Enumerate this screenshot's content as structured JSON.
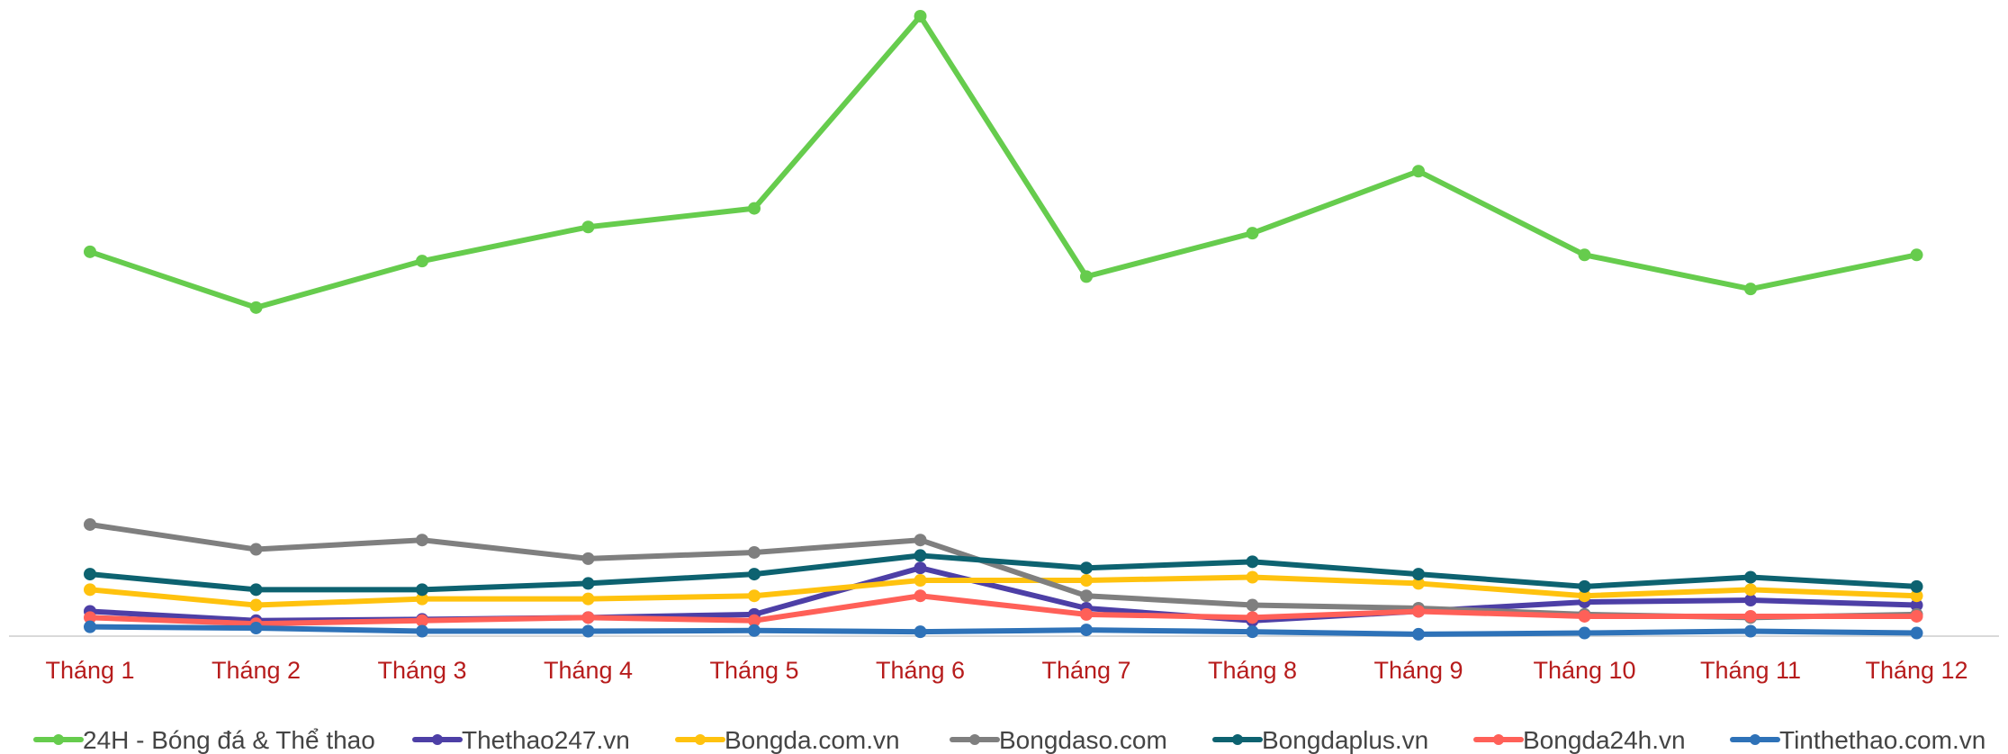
{
  "chart_data": {
    "type": "line",
    "title": "",
    "xlabel": "",
    "ylabel": "",
    "categories": [
      "Tháng 1",
      "Tháng 2",
      "Tháng 3",
      "Tháng 4",
      "Tháng 5",
      "Tháng 6",
      "Tháng 7",
      "Tháng 8",
      "Tháng 9",
      "Tháng 10",
      "Tháng 11",
      "Tháng 12"
    ],
    "ylim": [
      0,
      100
    ],
    "grid": false,
    "legend_position": "bottom",
    "series": [
      {
        "name": "24H - Bóng đá & Thể thao",
        "color": "#66cc4d",
        "values": [
          62,
          53,
          60.5,
          66,
          69,
          100,
          58,
          65,
          75,
          61.5,
          56,
          61.5
        ]
      },
      {
        "name": "Thethao247.vn",
        "color": "#4d3fa6",
        "values": [
          4,
          2.5,
          2.7,
          3,
          3.5,
          11,
          4.5,
          2.5,
          4,
          5.5,
          5.8,
          5
        ]
      },
      {
        "name": "Bongda.com.vn",
        "color": "#ffc20e",
        "values": [
          7.5,
          5,
          6,
          6,
          6.5,
          9,
          9,
          9.5,
          8.5,
          6.5,
          7.5,
          6.5
        ]
      },
      {
        "name": "Bongdaso.com",
        "color": "#7f7f7f",
        "values": [
          18,
          14,
          15.5,
          12.5,
          13.5,
          15.5,
          6.5,
          5,
          4.5,
          3.5,
          3,
          3.5
        ]
      },
      {
        "name": "Bongdaplus.vn",
        "color": "#0d6270",
        "values": [
          10,
          7.5,
          7.5,
          8.5,
          10,
          13,
          11,
          12,
          10,
          8,
          9.5,
          8
        ]
      },
      {
        "name": "Bongda24h.vn",
        "color": "#ff6058",
        "values": [
          3,
          2,
          2.5,
          3,
          2.5,
          6.5,
          3.5,
          3,
          4,
          3.2,
          3.2,
          3.2
        ]
      },
      {
        "name": "Tinthethao.com.vn",
        "color": "#2e72b8",
        "values": [
          1.5,
          1.3,
          0.8,
          0.8,
          0.9,
          0.7,
          1,
          0.7,
          0.3,
          0.5,
          0.8,
          0.5
        ]
      }
    ]
  }
}
